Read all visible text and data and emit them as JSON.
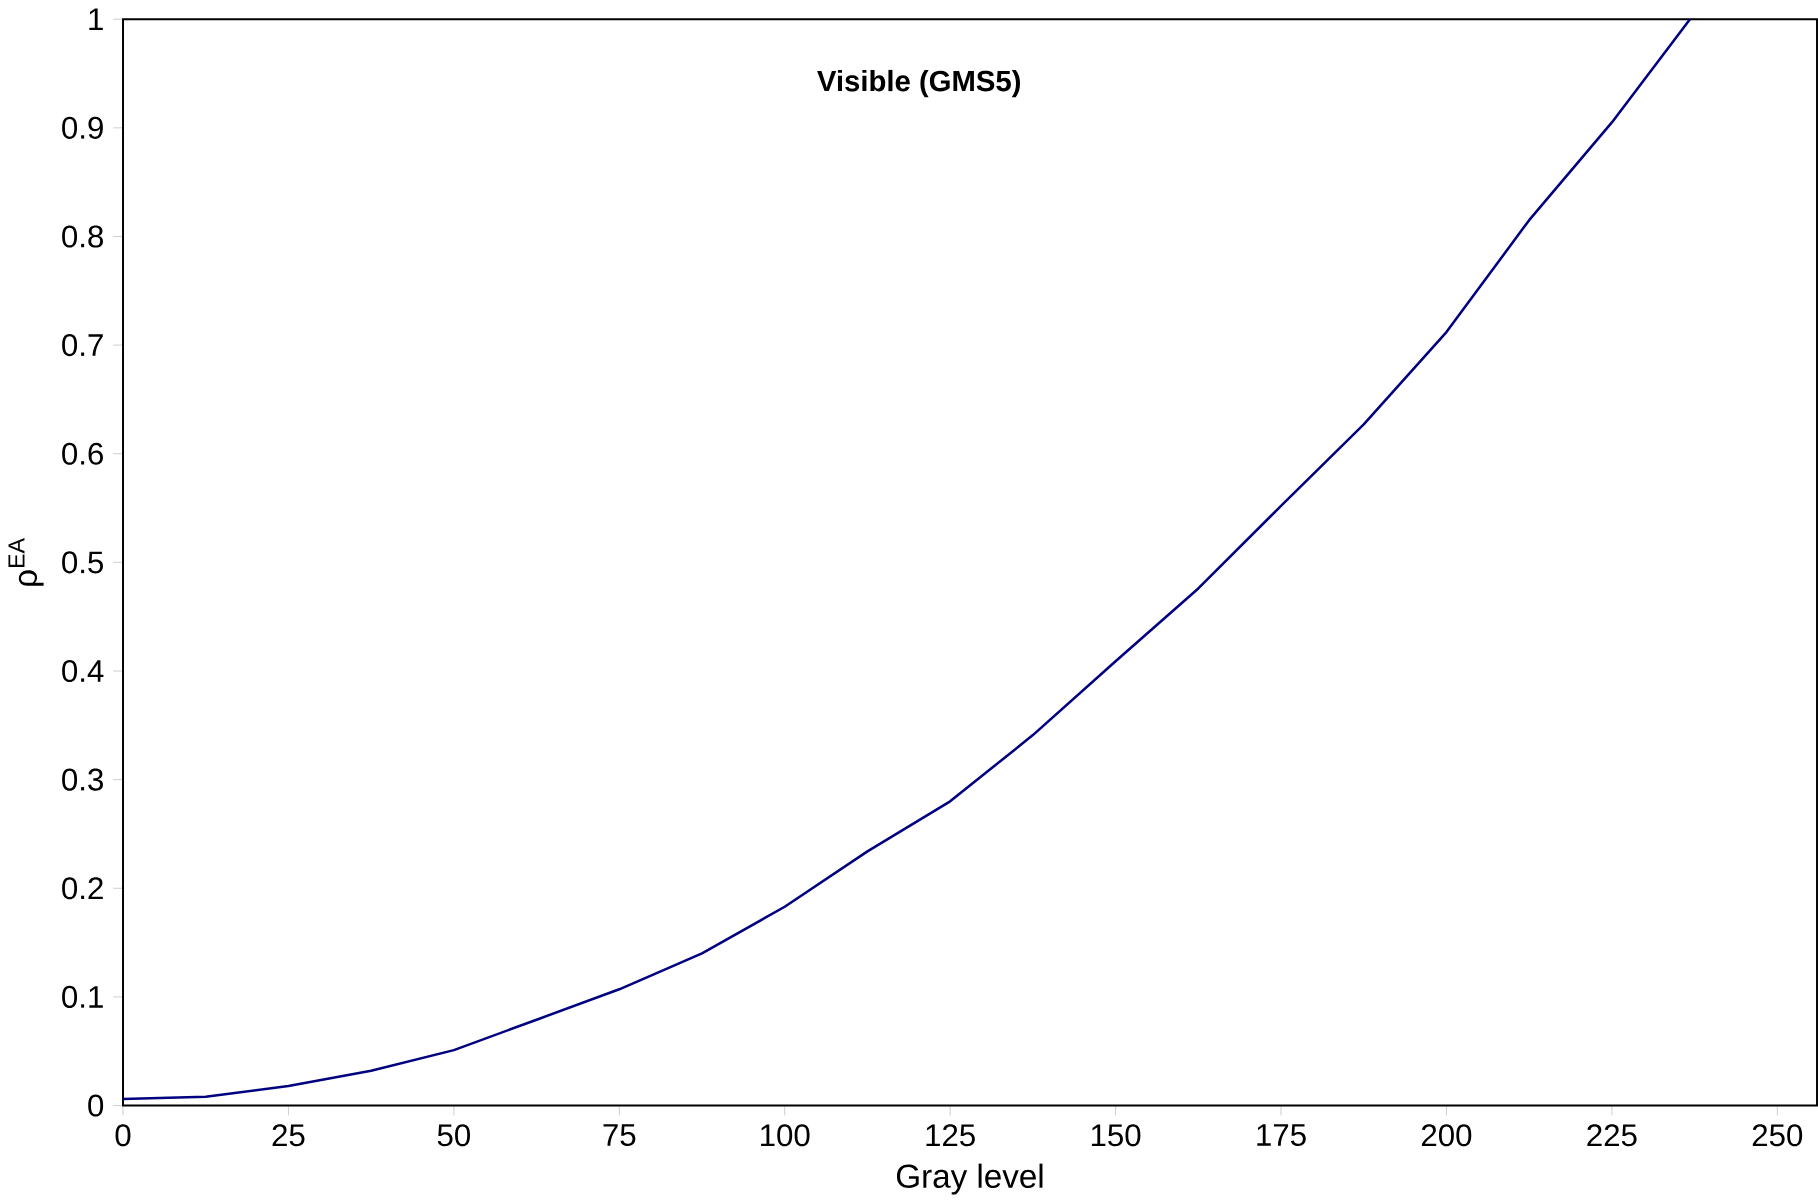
{
  "chart_data": {
    "type": "line",
    "title": "Visible (GMS5)",
    "xlabel": "Gray level",
    "ylabel": "ρ$^{EA}$",
    "x": [
      0,
      12.5,
      25,
      37.5,
      50,
      62.5,
      75,
      87.5,
      100,
      112.5,
      125,
      137.5,
      150,
      162.5,
      175,
      187.5,
      200,
      212.5,
      225,
      236.8
    ],
    "series": [
      {
        "color": "#000080",
        "values": [
          0.006,
          0.008,
          0.018,
          0.032,
          0.051,
          0.079,
          0.107,
          0.14,
          0.183,
          0.234,
          0.28,
          0.341,
          0.409,
          0.476,
          0.552,
          0.627,
          0.712,
          0.815,
          0.905,
          1.0
        ]
      }
    ],
    "xlim": [
      0,
      256
    ],
    "ylim": [
      0,
      1
    ],
    "xticks": [
      0,
      25,
      50,
      75,
      100,
      125,
      150,
      175,
      200,
      225,
      250
    ],
    "yticks": [
      0,
      0.1,
      0.2,
      0.3,
      0.4,
      0.5,
      0.6,
      0.7,
      0.8,
      0.9,
      1
    ],
    "grid": false,
    "marker": "none",
    "line_style": "solid"
  }
}
